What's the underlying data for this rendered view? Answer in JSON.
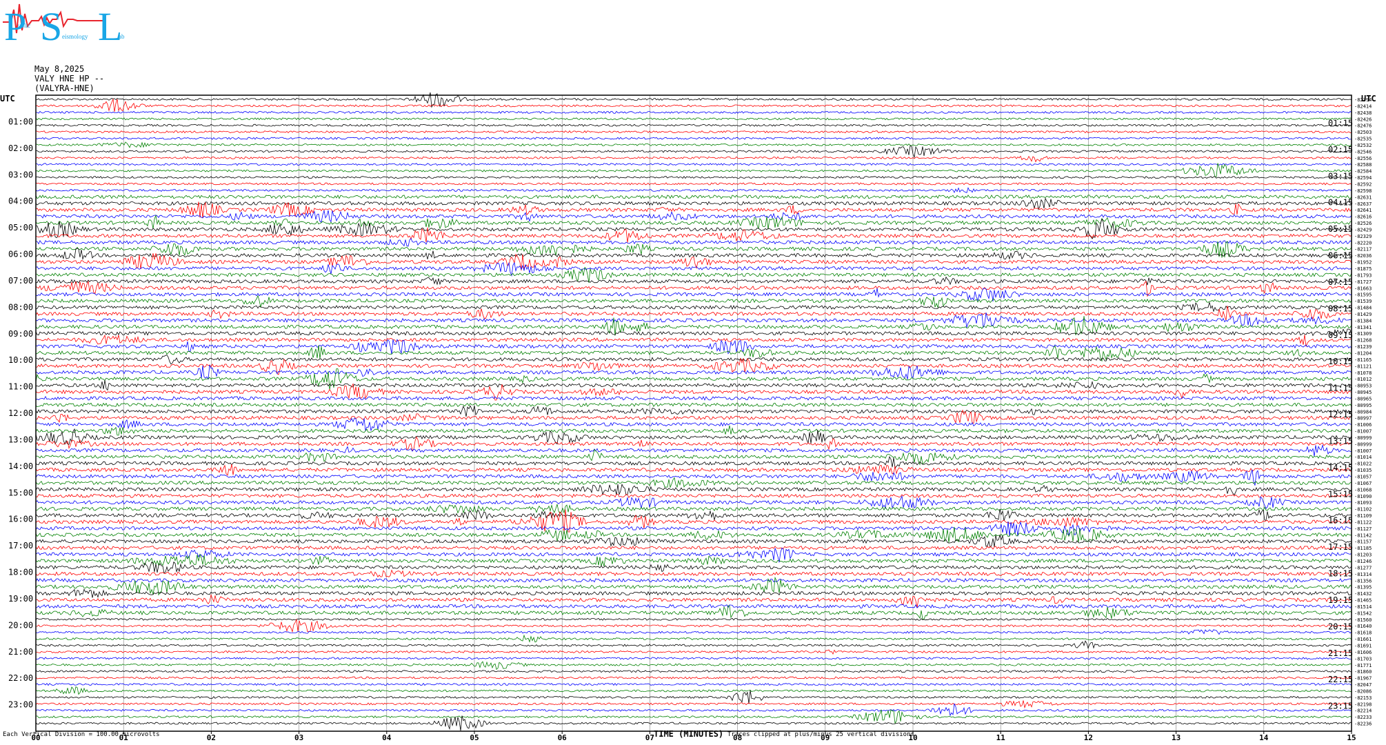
{
  "logo": {
    "letters": [
      "P",
      "S",
      "L"
    ],
    "small_words": [
      "ublic",
      "eismology",
      "ab"
    ],
    "colors": {
      "cyan": "#19a6e6",
      "red": "#e8252e"
    }
  },
  "header": {
    "date": "May 8,2025",
    "station": "VALY HNE HP --",
    "site": "(VALYRA-HNE)"
  },
  "corner_left": "UTC",
  "corner_right": "UTC",
  "footer": {
    "vertical_division": "Each Vertical Division =  100.00 microvolts",
    "xlabel": "TIME (MINUTES)",
    "clip_note": "Traces clipped at plus/minus 25 vertical divisions"
  },
  "chart_data": {
    "type": "line",
    "title": "",
    "xlabel": "TIME (MINUTES)",
    "xlim": [
      0,
      15
    ],
    "x_ticks": [
      "00",
      "01",
      "02",
      "03",
      "04",
      "05",
      "06",
      "07",
      "08",
      "09",
      "10",
      "11",
      "12",
      "13",
      "14",
      "15"
    ],
    "grid": true,
    "trace_colors": [
      "#000000",
      "#ff0000",
      "#0000ff",
      "#008000"
    ],
    "left_labels": [
      "01:00",
      "02:00",
      "03:00",
      "04:00",
      "05:00",
      "06:00",
      "07:00",
      "08:00",
      "09:00",
      "10:00",
      "11:00",
      "12:00",
      "13:00",
      "14:00",
      "15:00",
      "16:00",
      "17:00",
      "18:00",
      "19:00",
      "20:00",
      "21:00",
      "22:00",
      "23:00"
    ],
    "right_labels": [
      "01:15",
      "02:15",
      "03:15",
      "04:15",
      "05:15",
      "06:15",
      "07:15",
      "08:15",
      "09:15",
      "10:15",
      "11:15",
      "12:15",
      "13:15",
      "14:15",
      "15:15",
      "16:15",
      "17:15",
      "18:15",
      "19:15",
      "20:15",
      "21:15",
      "22:15",
      "23:15"
    ],
    "trace_offsets": [
      -82394,
      -82414,
      -82438,
      -82426,
      -82476,
      -82503,
      -82535,
      -82532,
      -82546,
      -82556,
      -82588,
      -82584,
      -82594,
      -82592,
      -82598,
      -82631,
      -82637,
      -82641,
      -82616,
      -82526,
      -82429,
      -82329,
      -82220,
      -82117,
      -82036,
      -81952,
      -81875,
      -81793,
      -81727,
      -81663,
      -81595,
      -81539,
      -81484,
      -81429,
      -81384,
      -81341,
      -81309,
      -81268,
      -81239,
      -81204,
      -81165,
      -81121,
      -81078,
      -81012,
      -80953,
      -80945,
      -80965,
      -80995,
      -80984,
      -80997,
      -81006,
      -81007,
      -80999,
      -80999,
      -81007,
      -81014,
      -81022,
      -81035,
      -81057,
      -81067,
      -81068,
      -81090,
      -81093,
      -81102,
      -81109,
      -81122,
      -81127,
      -81142,
      -81157,
      -81185,
      -81203,
      -81246,
      -81277,
      -81314,
      -81356,
      -81395,
      -81432,
      -81465,
      -81514,
      -81542,
      -81560,
      -81640,
      -81618,
      -81661,
      -81691,
      -81606,
      -81703,
      -81771,
      -81860,
      -81967,
      -82047,
      -82086,
      -82153,
      -82198,
      -82214,
      -82233,
      -82236
    ]
  }
}
